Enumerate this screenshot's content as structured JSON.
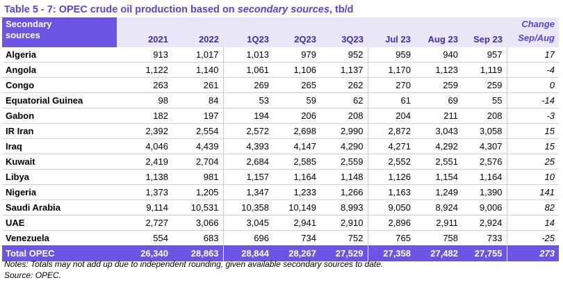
{
  "title": {
    "prefix": "Table 5 - 7: OPEC crude oil production based on ",
    "italic": "secondary sources",
    "suffix": ", tb/d"
  },
  "header": {
    "first_col": [
      "Secondary",
      "sources"
    ],
    "columns": [
      "2021",
      "2022",
      "1Q23",
      "2Q23",
      "3Q23",
      "Jul 23",
      "Aug 23",
      "Sep 23"
    ],
    "change": [
      "Change",
      "Sep/Aug"
    ]
  },
  "rows": [
    {
      "name": "Algeria",
      "values": [
        "913",
        "1,017",
        "1,013",
        "979",
        "952",
        "959",
        "940",
        "957"
      ],
      "change": "17"
    },
    {
      "name": "Angola",
      "values": [
        "1,122",
        "1,140",
        "1,061",
        "1,106",
        "1,137",
        "1,170",
        "1,123",
        "1,119"
      ],
      "change": "-4"
    },
    {
      "name": "Congo",
      "values": [
        "263",
        "261",
        "269",
        "265",
        "262",
        "270",
        "259",
        "259"
      ],
      "change": "0"
    },
    {
      "name": "Equatorial Guinea",
      "values": [
        "98",
        "84",
        "53",
        "59",
        "62",
        "61",
        "69",
        "55"
      ],
      "change": "-14"
    },
    {
      "name": "Gabon",
      "values": [
        "182",
        "197",
        "194",
        "206",
        "208",
        "204",
        "211",
        "208"
      ],
      "change": "-3"
    },
    {
      "name": "IR Iran",
      "values": [
        "2,392",
        "2,554",
        "2,572",
        "2,698",
        "2,990",
        "2,872",
        "3,043",
        "3,058"
      ],
      "change": "15"
    },
    {
      "name": "Iraq",
      "values": [
        "4,046",
        "4,439",
        "4,393",
        "4,147",
        "4,290",
        "4,271",
        "4,292",
        "4,307"
      ],
      "change": "15"
    },
    {
      "name": "Kuwait",
      "values": [
        "2,419",
        "2,704",
        "2,684",
        "2,585",
        "2,559",
        "2,552",
        "2,551",
        "2,576"
      ],
      "change": "25"
    },
    {
      "name": "Libya",
      "values": [
        "1,138",
        "981",
        "1,157",
        "1,164",
        "1,148",
        "1,126",
        "1,154",
        "1,164"
      ],
      "change": "10"
    },
    {
      "name": "Nigeria",
      "values": [
        "1,373",
        "1,205",
        "1,347",
        "1,233",
        "1,266",
        "1,163",
        "1,249",
        "1,390"
      ],
      "change": "141"
    },
    {
      "name": "Saudi Arabia",
      "values": [
        "9,114",
        "10,531",
        "10,358",
        "10,149",
        "8,993",
        "9,050",
        "8,924",
        "9,006"
      ],
      "change": "82"
    },
    {
      "name": "UAE",
      "values": [
        "2,727",
        "3,066",
        "3,045",
        "2,941",
        "2,910",
        "2,896",
        "2,911",
        "2,924"
      ],
      "change": "14"
    },
    {
      "name": "Venezuela",
      "values": [
        "554",
        "683",
        "696",
        "734",
        "752",
        "765",
        "758",
        "733"
      ],
      "change": "-25"
    }
  ],
  "total": {
    "name": "Total  OPEC",
    "values": [
      "26,340",
      "28,863",
      "28,844",
      "28,267",
      "27,529",
      "27,358",
      "27,482",
      "27,755"
    ],
    "change": "273"
  },
  "notes": [
    "Notes: Totals may not add up due to independent rounding, given available secondary sources to date.",
    "Source: OPEC."
  ],
  "colors": {
    "accent": "#6b56e3",
    "header_bg": "#eae7fb",
    "title": "#5a45c8"
  }
}
